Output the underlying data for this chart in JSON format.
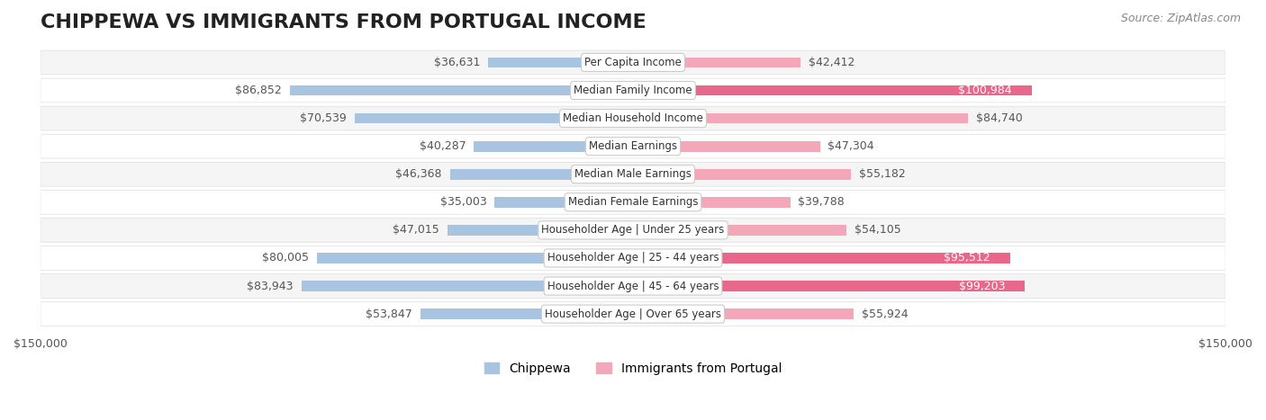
{
  "title": "CHIPPEWA VS IMMIGRANTS FROM PORTUGAL INCOME",
  "source": "Source: ZipAtlas.com",
  "categories": [
    "Per Capita Income",
    "Median Family Income",
    "Median Household Income",
    "Median Earnings",
    "Median Male Earnings",
    "Median Female Earnings",
    "Householder Age | Under 25 years",
    "Householder Age | 25 - 44 years",
    "Householder Age | 45 - 64 years",
    "Householder Age | Over 65 years"
  ],
  "chippewa_values": [
    36631,
    86852,
    70539,
    40287,
    46368,
    35003,
    47015,
    80005,
    83943,
    53847
  ],
  "portugal_values": [
    42412,
    100984,
    84740,
    47304,
    55182,
    39788,
    54105,
    95512,
    99203,
    55924
  ],
  "chippewa_labels": [
    "$36,631",
    "$86,852",
    "$70,539",
    "$40,287",
    "$46,368",
    "$35,003",
    "$47,015",
    "$80,005",
    "$83,943",
    "$53,847"
  ],
  "portugal_labels": [
    "$42,412",
    "$100,984",
    "$84,740",
    "$47,304",
    "$55,182",
    "$39,788",
    "$54,105",
    "$95,512",
    "$99,203",
    "$55,924"
  ],
  "chippewa_color_light": "#a8c4e0",
  "chippewa_color_dark": "#5b8ec4",
  "portugal_color_light": "#f4a7b9",
  "portugal_color_dark": "#e8678a",
  "axis_limit": 150000,
  "background_color": "#ffffff",
  "row_bg_color": "#f0f0f0",
  "title_fontsize": 16,
  "label_fontsize": 9,
  "category_fontsize": 8.5,
  "legend_fontsize": 10,
  "source_fontsize": 9,
  "portugal_large_threshold": 90000
}
